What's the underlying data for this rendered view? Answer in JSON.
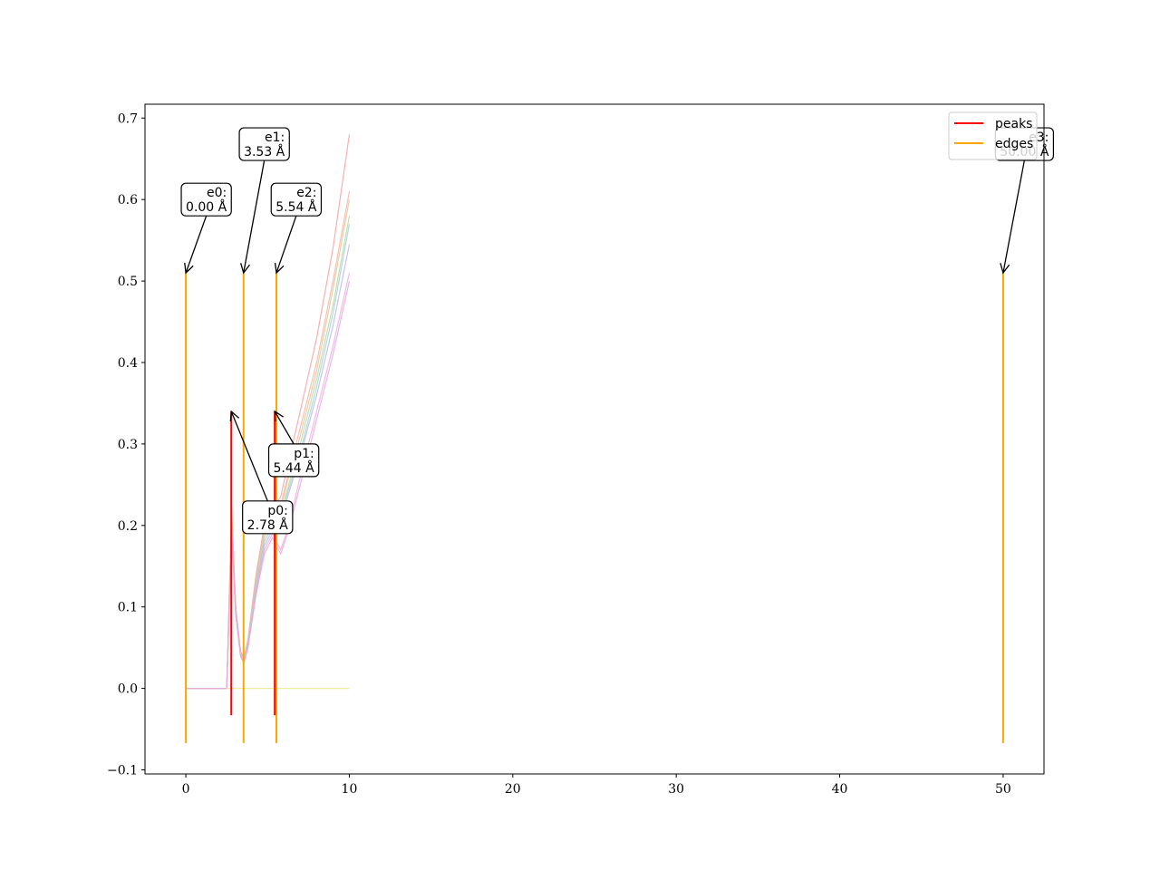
{
  "chart_data": {
    "type": "line",
    "title": "",
    "xlabel": "",
    "ylabel": "",
    "xlim": [
      -2.5,
      52.5
    ],
    "ylim": [
      -0.105,
      0.717
    ],
    "xticks": [
      0,
      10,
      20,
      30,
      40,
      50
    ],
    "yticks": [
      -0.1,
      0.0,
      0.1,
      0.2,
      0.3,
      0.4,
      0.5,
      0.6,
      0.7
    ],
    "xtick_labels": [
      "0",
      "10",
      "20",
      "30",
      "40",
      "50"
    ],
    "ytick_labels": [
      "−0.1",
      "0.0",
      "0.1",
      "0.2",
      "0.3",
      "0.4",
      "0.5",
      "0.6",
      "0.7"
    ],
    "grid": false,
    "legend": {
      "position": "top-right",
      "entries": [
        {
          "label": "peaks",
          "color": "#ff0000"
        },
        {
          "label": "edges",
          "color": "#ffa500"
        }
      ]
    },
    "peaks": {
      "color": "#ff0000",
      "y_range": [
        -0.033,
        0.34
      ],
      "items": [
        {
          "name": "p0",
          "x": 2.78,
          "label_line1": "p0:",
          "label_line2": "2.78 Å",
          "text_at": [
            5.0,
            0.21
          ],
          "point_at": [
            2.78,
            0.34
          ]
        },
        {
          "name": "p1",
          "x": 5.44,
          "label_line1": "p1:",
          "label_line2": "5.44 Å",
          "text_at": [
            6.6,
            0.28
          ],
          "point_at": [
            5.44,
            0.34
          ]
        }
      ]
    },
    "edges": {
      "color": "#ffa500",
      "y_range": [
        -0.067,
        0.51
      ],
      "items": [
        {
          "name": "e0",
          "x": 0.0,
          "label_line1": "e0:",
          "label_line2": "0.00 Å",
          "text_at": [
            1.25,
            0.6
          ],
          "point_at": [
            0.0,
            0.51
          ]
        },
        {
          "name": "e1",
          "x": 3.53,
          "label_line1": "e1:",
          "label_line2": "3.53 Å",
          "text_at": [
            4.8,
            0.668
          ],
          "point_at": [
            3.53,
            0.51
          ]
        },
        {
          "name": "e2",
          "x": 5.54,
          "label_line1": "e2:",
          "label_line2": "5.54 Å",
          "text_at": [
            6.75,
            0.6
          ],
          "point_at": [
            5.54,
            0.51
          ]
        },
        {
          "name": "e3",
          "x": 50.0,
          "label_line1": "e3:",
          "label_line2": "50.00 Å",
          "text_at": [
            51.3,
            0.668
          ],
          "point_at": [
            50.0,
            0.51
          ]
        }
      ]
    },
    "series_style": "many faint pastel rdf curves",
    "series": [
      {
        "color": "#f4a3a3",
        "values": [
          [
            0.0,
            0.0
          ],
          [
            2.5,
            0.0
          ],
          [
            2.65,
            0.11
          ],
          [
            2.8,
            0.22
          ],
          [
            3.05,
            0.1
          ],
          [
            3.35,
            0.045
          ],
          [
            3.55,
            0.037
          ],
          [
            3.8,
            0.06
          ],
          [
            4.3,
            0.14
          ],
          [
            4.8,
            0.2
          ],
          [
            5.3,
            0.22
          ],
          [
            5.8,
            0.235
          ],
          [
            6.3,
            0.28
          ],
          [
            7.0,
            0.34
          ],
          [
            8.0,
            0.43
          ],
          [
            9.0,
            0.54
          ],
          [
            10.0,
            0.68
          ]
        ]
      },
      {
        "color": "#f6b5a0",
        "values": [
          [
            0.0,
            0.0
          ],
          [
            2.5,
            0.0
          ],
          [
            2.65,
            0.11
          ],
          [
            2.8,
            0.215
          ],
          [
            3.05,
            0.1
          ],
          [
            3.35,
            0.044
          ],
          [
            3.55,
            0.036
          ],
          [
            3.8,
            0.058
          ],
          [
            4.3,
            0.135
          ],
          [
            4.8,
            0.195
          ],
          [
            5.3,
            0.215
          ],
          [
            5.8,
            0.225
          ],
          [
            6.3,
            0.265
          ],
          [
            7.0,
            0.32
          ],
          [
            8.0,
            0.4
          ],
          [
            9.0,
            0.5
          ],
          [
            10.0,
            0.61
          ]
        ]
      },
      {
        "color": "#e0c79a",
        "values": [
          [
            0.0,
            0.0
          ],
          [
            2.5,
            0.0
          ],
          [
            2.65,
            0.105
          ],
          [
            2.8,
            0.21
          ],
          [
            3.05,
            0.1
          ],
          [
            3.35,
            0.043
          ],
          [
            3.55,
            0.035
          ],
          [
            3.8,
            0.056
          ],
          [
            4.3,
            0.13
          ],
          [
            4.8,
            0.19
          ],
          [
            5.3,
            0.21
          ],
          [
            5.8,
            0.22
          ],
          [
            6.3,
            0.26
          ],
          [
            7.0,
            0.31
          ],
          [
            8.0,
            0.39
          ],
          [
            9.0,
            0.49
          ],
          [
            10.0,
            0.6
          ]
        ]
      },
      {
        "color": "#b8d8a8",
        "values": [
          [
            0.0,
            0.0
          ],
          [
            2.5,
            0.0
          ],
          [
            2.65,
            0.1
          ],
          [
            2.8,
            0.205
          ],
          [
            3.05,
            0.095
          ],
          [
            3.35,
            0.042
          ],
          [
            3.55,
            0.034
          ],
          [
            3.8,
            0.055
          ],
          [
            4.3,
            0.128
          ],
          [
            4.8,
            0.185
          ],
          [
            5.3,
            0.205
          ],
          [
            5.8,
            0.215
          ],
          [
            6.3,
            0.25
          ],
          [
            7.0,
            0.3
          ],
          [
            8.0,
            0.38
          ],
          [
            9.0,
            0.47
          ],
          [
            10.0,
            0.58
          ]
        ]
      },
      {
        "color": "#a8d0d8",
        "values": [
          [
            0.0,
            0.0
          ],
          [
            2.5,
            0.0
          ],
          [
            2.65,
            0.1
          ],
          [
            2.8,
            0.2
          ],
          [
            3.05,
            0.095
          ],
          [
            3.35,
            0.041
          ],
          [
            3.55,
            0.033
          ],
          [
            3.8,
            0.054
          ],
          [
            4.3,
            0.125
          ],
          [
            4.8,
            0.18
          ],
          [
            5.3,
            0.2
          ],
          [
            5.8,
            0.21
          ],
          [
            6.3,
            0.245
          ],
          [
            7.0,
            0.29
          ],
          [
            8.0,
            0.37
          ],
          [
            9.0,
            0.46
          ],
          [
            10.0,
            0.57
          ]
        ]
      },
      {
        "color": "#c0b8e8",
        "values": [
          [
            0.0,
            0.0
          ],
          [
            2.5,
            0.0
          ],
          [
            2.65,
            0.1
          ],
          [
            2.8,
            0.2
          ],
          [
            3.05,
            0.095
          ],
          [
            3.35,
            0.04
          ],
          [
            3.55,
            0.032
          ],
          [
            3.8,
            0.052
          ],
          [
            4.3,
            0.12
          ],
          [
            4.8,
            0.175
          ],
          [
            5.3,
            0.195
          ],
          [
            5.8,
            0.205
          ],
          [
            6.3,
            0.24
          ],
          [
            7.0,
            0.285
          ],
          [
            8.0,
            0.36
          ],
          [
            9.0,
            0.445
          ],
          [
            10.0,
            0.545
          ]
        ]
      },
      {
        "color": "#e8b0e8",
        "values": [
          [
            0.0,
            0.0
          ],
          [
            2.5,
            0.0
          ],
          [
            2.65,
            0.095
          ],
          [
            2.8,
            0.195
          ],
          [
            3.05,
            0.09
          ],
          [
            3.35,
            0.04
          ],
          [
            3.55,
            0.032
          ],
          [
            3.8,
            0.05
          ],
          [
            4.3,
            0.118
          ],
          [
            4.8,
            0.17
          ],
          [
            5.3,
            0.19
          ],
          [
            5.8,
            0.17
          ],
          [
            6.3,
            0.2
          ],
          [
            7.0,
            0.26
          ],
          [
            8.0,
            0.34
          ],
          [
            9.0,
            0.42
          ],
          [
            10.0,
            0.51
          ]
        ]
      },
      {
        "color": "#e8a8d8",
        "values": [
          [
            0.0,
            0.0
          ],
          [
            2.5,
            0.0
          ],
          [
            2.65,
            0.095
          ],
          [
            2.8,
            0.19
          ],
          [
            3.05,
            0.09
          ],
          [
            3.35,
            0.039
          ],
          [
            3.55,
            0.031
          ],
          [
            3.8,
            0.05
          ],
          [
            4.3,
            0.115
          ],
          [
            4.8,
            0.165
          ],
          [
            5.3,
            0.185
          ],
          [
            5.8,
            0.165
          ],
          [
            6.3,
            0.195
          ],
          [
            7.0,
            0.25
          ],
          [
            8.0,
            0.33
          ],
          [
            9.0,
            0.41
          ],
          [
            10.0,
            0.5
          ]
        ]
      },
      {
        "color": "#f0e68c",
        "values": [
          [
            2.5,
            0.0
          ],
          [
            10.0,
            0.0
          ]
        ]
      }
    ]
  }
}
